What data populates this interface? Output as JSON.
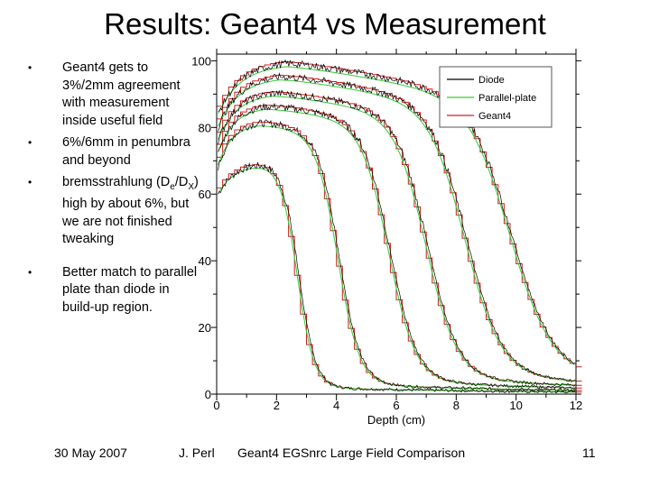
{
  "slide": {
    "title": "Results: Geant4 vs Measurement",
    "bullets": [
      {
        "text": "Geant4 gets to 3%/2mm agreement with measurement inside useful field"
      },
      {
        "text": "6%/6mm in penumbra and beyond"
      },
      {
        "pre": "bremsstrahlung (D",
        "sub1": "e",
        "mid": "/D",
        "sub2": "X",
        "post": ") high by about 6%, but we are not finished tweaking"
      },
      {
        "text": "Better match to parallel plate than diode in build-up region."
      }
    ],
    "footer": {
      "date": "30 May 2007",
      "author": "J. Perl",
      "center": "Geant4 EGSnrc Large Field Comparison",
      "page": "11"
    }
  },
  "colors": {
    "diode": "#000000",
    "parallel_plate": "#33cc33",
    "geant4": "#cc2020"
  },
  "chart_data": {
    "type": "line",
    "xlabel": "Depth (cm)",
    "ylabel": "",
    "xlim": [
      0,
      12
    ],
    "ylim": [
      0,
      102
    ],
    "x_ticks": [
      0,
      2,
      4,
      6,
      8,
      10,
      12
    ],
    "y_ticks": [
      0,
      20,
      40,
      60,
      80,
      100
    ],
    "x_tick_labels": [
      "0",
      "2",
      "4",
      "6",
      "8",
      "10",
      "12"
    ],
    "y_tick_labels": [
      "0",
      "20",
      "40",
      "60",
      "80",
      "100"
    ],
    "grid": false,
    "legend_position": "top-right",
    "legend": [
      "Diode",
      "Parallel-plate",
      "Geant4"
    ],
    "profiles": [
      {
        "surface": 60,
        "peak": 70,
        "peak_depth": 1.75,
        "edge": 2.7,
        "width": 0.28,
        "tail": 2
      },
      {
        "surface": 68,
        "peak": 82,
        "peak_depth": 1.4,
        "edge": 4.05,
        "width": 0.36,
        "tail": 3
      },
      {
        "surface": 72,
        "peak": 87,
        "peak_depth": 1.6,
        "edge": 5.75,
        "width": 0.45,
        "tail": 4
      },
      {
        "surface": 76,
        "peak": 91,
        "peak_depth": 1.85,
        "edge": 7.0,
        "width": 0.52,
        "tail": 5
      },
      {
        "surface": 80,
        "peak": 96,
        "peak_depth": 2.1,
        "edge": 8.3,
        "width": 0.6,
        "tail": 6
      },
      {
        "surface": 84,
        "peak": 100,
        "peak_depth": 2.3,
        "edge": 9.8,
        "width": 0.7,
        "tail": 7
      }
    ]
  }
}
